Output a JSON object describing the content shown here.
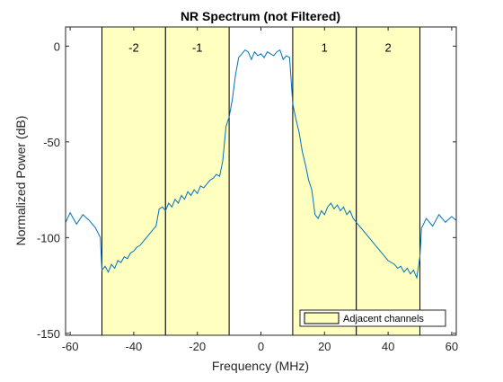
{
  "chart_data": {
    "type": "line",
    "title": "NR Spectrum (not Filtered)",
    "xlabel": "Frequency (MHz)",
    "ylabel": "Normalized Power (dB)",
    "xlim": [
      -61.44,
      61.44
    ],
    "ylim": [
      -151,
      10
    ],
    "xticks": [
      -60,
      -40,
      -20,
      0,
      20,
      40,
      60
    ],
    "yticks": [
      0,
      -50,
      -100,
      -150
    ],
    "xtick_labels": [
      "-60",
      "-40",
      "-20",
      "0",
      "20",
      "40",
      "60"
    ],
    "ytick_labels": [
      "0",
      "-50",
      "-100",
      "-150"
    ],
    "grid": false,
    "legend": {
      "position": "bottom-right",
      "entries": [
        "Adjacent channels"
      ]
    },
    "colors": {
      "line": "#0072bd",
      "band_fill": "#ffffc0",
      "band_edge": "#000000"
    },
    "adjacent_channels": [
      {
        "label": "-2",
        "x_range": [
          -50,
          -30
        ]
      },
      {
        "label": "-1",
        "x_range": [
          -30,
          -10
        ]
      },
      {
        "label": "1",
        "x_range": [
          10,
          30
        ]
      },
      {
        "label": "2",
        "x_range": [
          30,
          50
        ]
      }
    ],
    "series": [
      {
        "x": [
          -61.4,
          -60,
          -58,
          -56,
          -54,
          -52,
          -50.5,
          -50,
          -49,
          -48,
          -47,
          -46,
          -45,
          -44,
          -43,
          -42,
          -41,
          -40,
          -39,
          -38,
          -37,
          -36,
          -35,
          -34,
          -33,
          -32,
          -31,
          -30,
          -29,
          -28,
          -27,
          -26,
          -25,
          -24,
          -23,
          -22,
          -21,
          -20,
          -19,
          -18,
          -17,
          -16,
          -15,
          -14,
          -13,
          -12,
          -11,
          -10,
          -9,
          -8,
          -7,
          -6,
          -5,
          -4,
          -3,
          -2,
          -1,
          0,
          1,
          2,
          3,
          4,
          5,
          6,
          7,
          8,
          9,
          10,
          11,
          12,
          13,
          14,
          15,
          16,
          17,
          18,
          19,
          20,
          21,
          22,
          23,
          24,
          25,
          26,
          27,
          28,
          29,
          30,
          31,
          32,
          33,
          34,
          35,
          36,
          37,
          38,
          39,
          40,
          41,
          42,
          43,
          44,
          45,
          46,
          47,
          48,
          49,
          50,
          50.5,
          52,
          54,
          56,
          58,
          60,
          61.4
        ],
        "y": [
          -92,
          -87,
          -93,
          -88,
          -91,
          -95,
          -100,
          -117,
          -115,
          -118,
          -114,
          -116,
          -112,
          -113,
          -110,
          -111,
          -108,
          -107,
          -105,
          -104,
          -102,
          -100,
          -98,
          -96,
          -94,
          -85,
          -84,
          -86,
          -82,
          -84,
          -80,
          -82,
          -78,
          -80,
          -76,
          -78,
          -75,
          -77,
          -73,
          -74,
          -72,
          -70,
          -69,
          -67,
          -68,
          -60,
          -42,
          -37,
          -28,
          -15,
          -6,
          -4,
          -2,
          -3,
          -7,
          -3,
          -5,
          -4,
          -6,
          -3,
          -4,
          -5,
          -3,
          -2,
          -7,
          -5,
          -6,
          -30,
          -38,
          -45,
          -55,
          -62,
          -70,
          -75,
          -88,
          -90,
          -86,
          -88,
          -84,
          -82,
          -85,
          -83,
          -86,
          -84,
          -88,
          -86,
          -90,
          -92,
          -94,
          -96,
          -98,
          -100,
          -102,
          -104,
          -106,
          -108,
          -110,
          -112,
          -113,
          -114,
          -116,
          -115,
          -118,
          -116,
          -119,
          -117,
          -121,
          -110,
          -95,
          -90,
          -94,
          -88,
          -92,
          -89,
          -91
        ]
      }
    ]
  }
}
